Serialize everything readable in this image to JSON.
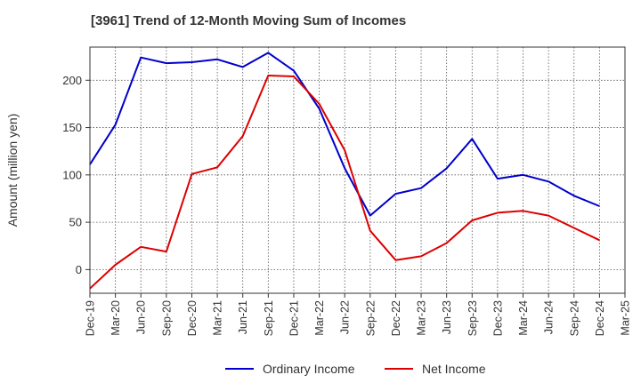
{
  "chart_data": {
    "type": "line",
    "title": "[3961]  Trend of 12-Month Moving Sum of Incomes",
    "xlabel": "",
    "ylabel": "Amount (million yen)",
    "ylim": [
      -25,
      235
    ],
    "yticks": [
      0,
      50,
      100,
      150,
      200
    ],
    "categories": [
      "Dec-19",
      "Mar-20",
      "Jun-20",
      "Sep-20",
      "Dec-20",
      "Mar-21",
      "Jun-21",
      "Sep-21",
      "Dec-21",
      "Mar-22",
      "Jun-22",
      "Sep-22",
      "Dec-22",
      "Mar-23",
      "Jun-23",
      "Sep-23",
      "Dec-23",
      "Mar-24",
      "Jun-24",
      "Sep-24",
      "Dec-24",
      "Mar-25"
    ],
    "grid": true,
    "legend": "bottom-center",
    "series": [
      {
        "name": "Ordinary Income",
        "color": "#0000cc",
        "values": [
          111,
          153,
          224,
          218,
          219,
          222,
          214,
          229,
          210,
          170,
          107,
          57,
          80,
          86,
          107,
          138,
          96,
          100,
          93,
          78,
          67,
          null
        ]
      },
      {
        "name": "Net Income",
        "color": "#dd0000",
        "values": [
          -20,
          5,
          24,
          19,
          101,
          108,
          141,
          205,
          204,
          175,
          126,
          41,
          10,
          14,
          28,
          52,
          60,
          62,
          57,
          44,
          31,
          null
        ]
      }
    ]
  }
}
